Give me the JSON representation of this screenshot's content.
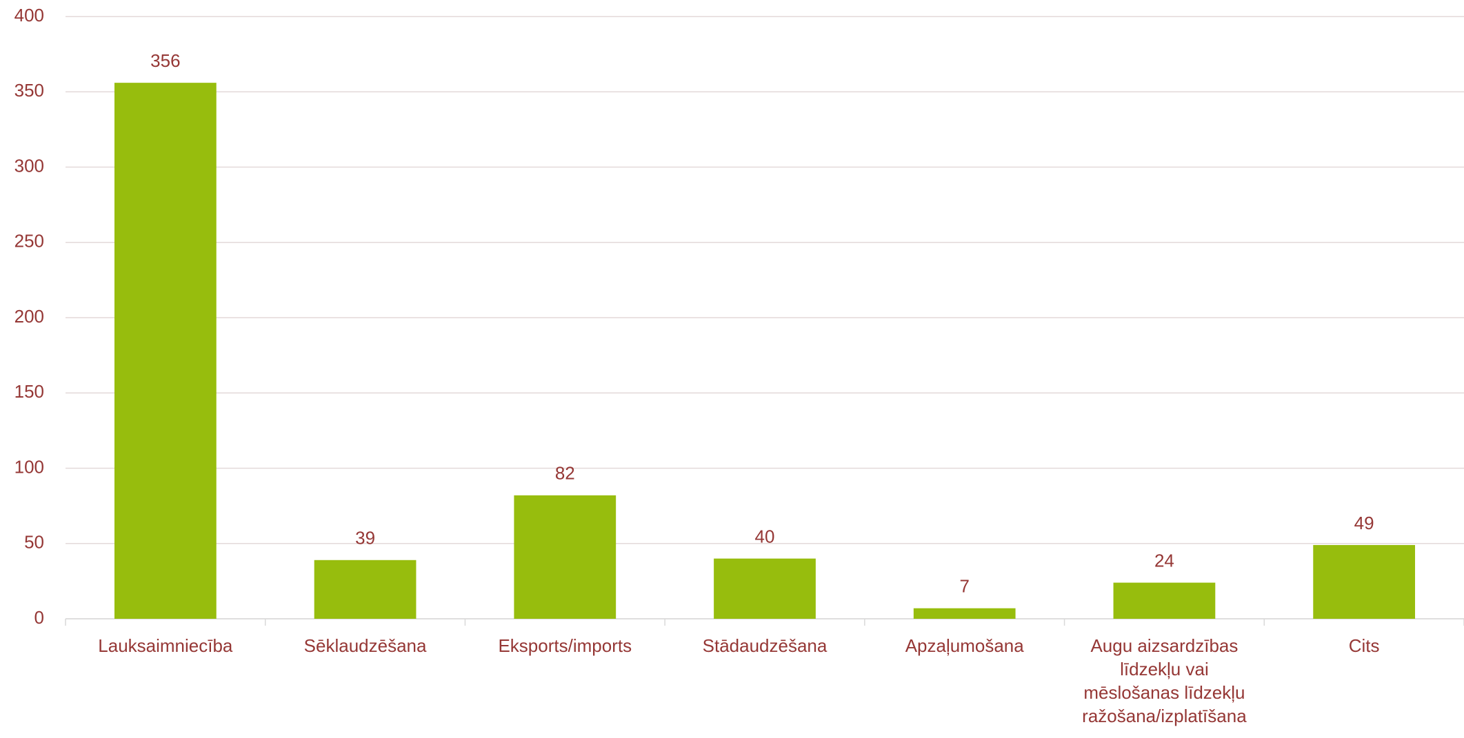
{
  "chart_data": {
    "type": "bar",
    "categories": [
      "Lauksaimniecība",
      "Sēklaudzēšana",
      "Eksports/imports",
      "Stādaudzēšana",
      "Apzaļumošana",
      "Augu aizsardzības līdzekļu vai mēslošanas līdzekļu ražošana/izplatīšana",
      "Cits"
    ],
    "values": [
      356,
      39,
      82,
      40,
      7,
      24,
      49
    ],
    "color": "#97bd0d",
    "ylim": [
      0,
      400
    ],
    "yticks": [
      0,
      50,
      100,
      150,
      200,
      250,
      300,
      350,
      400
    ],
    "grid": true
  }
}
